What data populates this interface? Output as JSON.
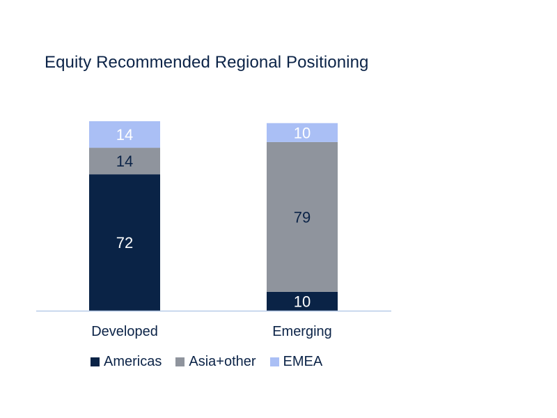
{
  "chart_data": {
    "type": "bar",
    "stacked": true,
    "title": "Equity Recommended Regional Positioning",
    "categories": [
      "Developed",
      "Emerging"
    ],
    "series": [
      {
        "name": "Americas",
        "values": [
          72,
          10
        ],
        "color": "#0a2346"
      },
      {
        "name": "Asia+other",
        "values": [
          14,
          79
        ],
        "color": "#8f949d"
      },
      {
        "name": "EMEA",
        "values": [
          14,
          10
        ],
        "color": "#aabff5"
      }
    ],
    "ylim": [
      0,
      100
    ],
    "legend_position": "bottom"
  }
}
